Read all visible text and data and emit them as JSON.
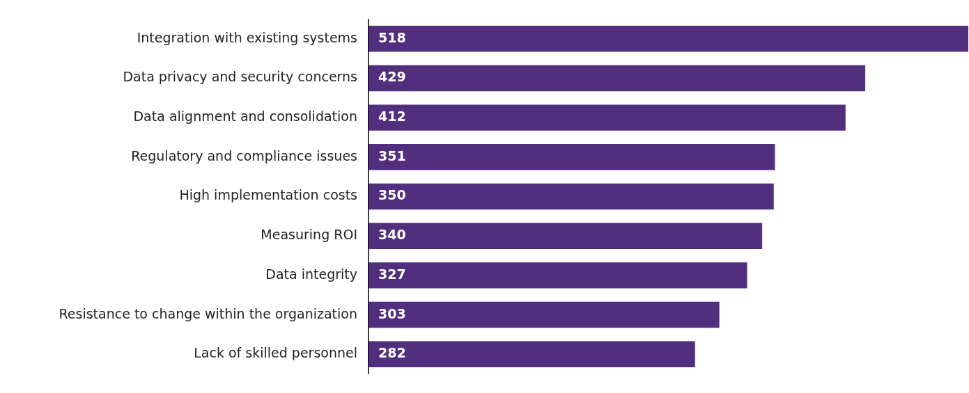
{
  "chart_data": {
    "type": "bar",
    "orientation": "horizontal",
    "categories": [
      "Integration with existing systems",
      "Data privacy and security concerns",
      "Data alignment and consolidation",
      "Regulatory and compliance issues",
      "High implementation costs",
      "Measuring ROI",
      "Data integrity",
      "Resistance to change within the organization",
      "Lack of skilled personnel"
    ],
    "values": [
      518,
      429,
      412,
      351,
      350,
      340,
      327,
      303,
      282
    ],
    "color": "#512f7e",
    "xlim": [
      0,
      518
    ],
    "data_labels": true,
    "grid": false,
    "legend": false,
    "tick_labels": "y"
  }
}
